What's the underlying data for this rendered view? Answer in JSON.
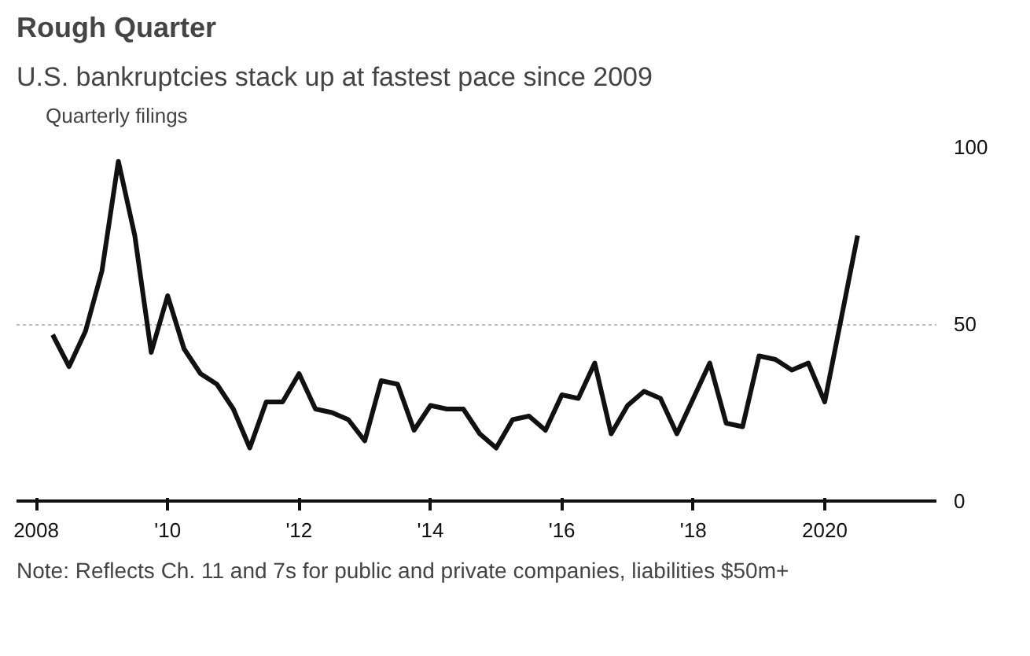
{
  "chart_data": {
    "type": "line",
    "title": "Rough Quarter",
    "subtitle": "U.S. bankruptcies stack up at fastest pace since 2009",
    "x": [
      2008.25,
      2008.5,
      2008.75,
      2009.0,
      2009.25,
      2009.5,
      2009.75,
      2010.0,
      2010.25,
      2010.5,
      2010.75,
      2011.0,
      2011.25,
      2011.5,
      2011.75,
      2012.0,
      2012.25,
      2012.5,
      2012.75,
      2013.0,
      2013.25,
      2013.5,
      2013.75,
      2014.0,
      2014.25,
      2014.5,
      2014.75,
      2015.0,
      2015.25,
      2015.5,
      2015.75,
      2016.0,
      2016.25,
      2016.5,
      2016.75,
      2017.0,
      2017.25,
      2017.5,
      2017.75,
      2018.0,
      2018.25,
      2018.5,
      2018.75,
      2019.0,
      2019.25,
      2019.5,
      2019.75,
      2020.0,
      2020.5
    ],
    "series": [
      {
        "name": "Quarterly filings",
        "color": "#111111",
        "values": [
          47,
          38,
          48,
          65,
          96,
          75,
          42,
          58,
          43,
          36,
          33,
          26,
          15,
          28,
          28,
          36,
          26,
          25,
          23,
          17,
          34,
          33,
          20,
          27,
          26,
          26,
          19,
          15,
          23,
          24,
          20,
          30,
          29,
          39,
          19,
          27,
          31,
          29,
          19,
          29,
          39,
          22,
          21,
          41,
          40,
          37,
          39,
          28,
          75
        ]
      }
    ],
    "xlim": [
      2007.7,
      2021.7
    ],
    "ylim": [
      0,
      100
    ],
    "xticks": [
      {
        "value": 2008,
        "label": "2008"
      },
      {
        "value": 2010,
        "label": "'10"
      },
      {
        "value": 2012,
        "label": "'12"
      },
      {
        "value": 2014,
        "label": "'14"
      },
      {
        "value": 2016,
        "label": "'16"
      },
      {
        "value": 2018,
        "label": "'18"
      },
      {
        "value": 2020,
        "label": "2020"
      }
    ],
    "yticks": [
      0,
      50,
      100
    ],
    "grid": "y",
    "legend": "top left",
    "line_style": "solid",
    "marker": "none",
    "annotations": [
      "Note: Reflects Ch. 11 and 7s for public and private companies, liabilities $50m+"
    ]
  }
}
